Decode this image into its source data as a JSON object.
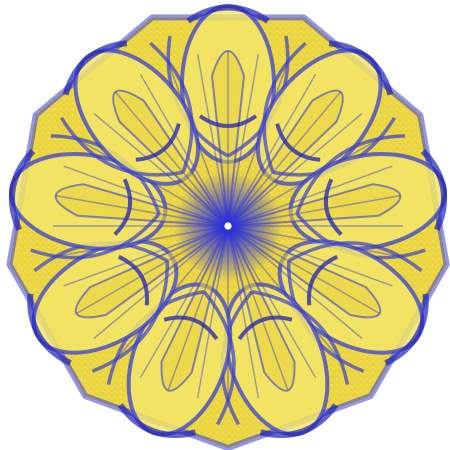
{
  "image": {
    "description_kind": "symmetric-fractal-attractor",
    "symmetry_order": 9,
    "colors": {
      "background": "#ffffff",
      "fill_primary": "#e8d23a",
      "fill_secondary": "#f3e56a",
      "stroke": "#3a3fd0",
      "stroke_dark": "#1e22b8",
      "center_glow": "#4448e0"
    }
  }
}
